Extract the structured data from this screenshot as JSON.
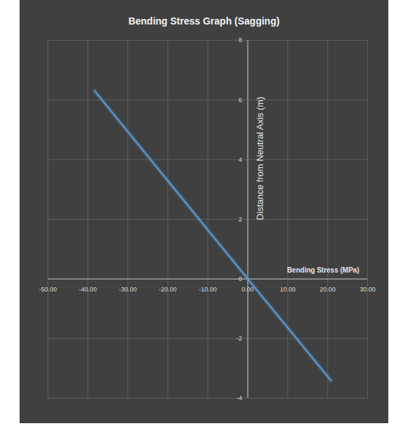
{
  "chart_data": {
    "type": "line",
    "title": "Bending Stress Graph (Sagging)",
    "x_label": "Bending Stress (MPa)",
    "y_label": "Distance from Neutral Axis (m)",
    "x": [
      -38.3,
      0,
      20.8
    ],
    "series": [
      {
        "values": [
          6.3,
          0,
          -3.4
        ],
        "color": "#5b9bd5"
      }
    ],
    "xlim": [
      -50,
      30
    ],
    "xticks": [
      {
        "value": -50,
        "label": "-50.00"
      },
      {
        "value": -40,
        "label": "-40.00"
      },
      {
        "value": -30,
        "label": "-30.00"
      },
      {
        "value": -20,
        "label": "-20.00"
      },
      {
        "value": -10,
        "label": "-10.00"
      },
      {
        "value": 0,
        "label": "0.00"
      },
      {
        "value": 10,
        "label": "10.00"
      },
      {
        "value": 20,
        "label": "20.00"
      },
      {
        "value": 30,
        "label": "30.00"
      }
    ],
    "ylim": [
      -4,
      8
    ],
    "yticks": [
      -4,
      -2,
      0,
      2,
      4,
      6,
      8
    ],
    "grid": true
  }
}
